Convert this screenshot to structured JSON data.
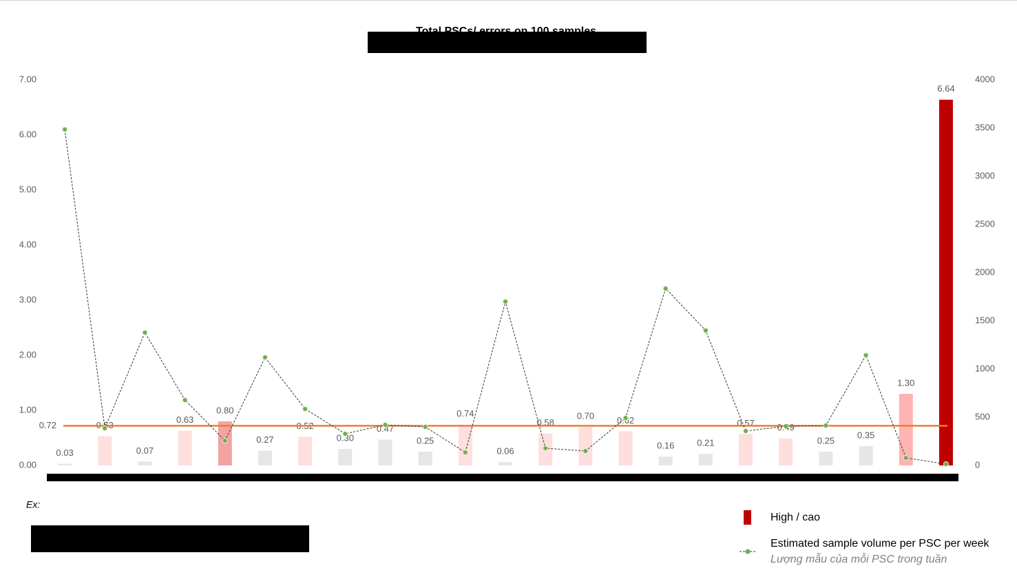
{
  "chart_data": {
    "type": "bar",
    "title": "Total PSCs/ errors on 100 samples",
    "note": "Ex:",
    "categories": [
      null,
      null,
      null,
      null,
      null,
      null,
      null,
      null,
      null,
      null,
      null,
      null,
      null,
      null,
      null,
      null,
      null,
      null,
      null,
      null,
      null,
      null,
      null
    ],
    "series": [
      {
        "name": "High / cao",
        "type": "bar",
        "color": "#c00000",
        "values": [
          0.03,
          0.53,
          0.07,
          0.63,
          0.8,
          0.27,
          0.52,
          0.3,
          0.47,
          0.25,
          0.74,
          0.06,
          0.58,
          0.7,
          0.62,
          0.16,
          0.21,
          0.57,
          0.49,
          0.25,
          0.35,
          1.3,
          6.64
        ],
        "value_labels": [
          "0.03",
          "0.53",
          "0.07",
          "0.63",
          "0.80",
          "0.27",
          "0.52",
          "0.30",
          "0.47",
          "0.25",
          "0.74",
          "0.06",
          "0.58",
          "0.70",
          "0.62",
          "0.16",
          "0.21",
          "0.57",
          "0.49",
          "0.25",
          "0.35",
          "1.30",
          "6.64"
        ],
        "colors": [
          "#e7e6e6",
          "#ffdede",
          "#e7e6e6",
          "#ffdede",
          "#f4a3a3",
          "#e7e6e6",
          "#ffdede",
          "#e7e6e6",
          "#e7e6e6",
          "#e7e6e6",
          "#ffdede",
          "#e7e6e6",
          "#ffdede",
          "#ffdede",
          "#ffdede",
          "#e7e6e6",
          "#e7e6e6",
          "#ffdede",
          "#ffdede",
          "#e7e6e6",
          "#e7e6e6",
          "#ffb3b3",
          "#c00000"
        ]
      },
      {
        "name": "Estimated sample volume per PSC per week",
        "name_vi": "Lượng mẫu của mỗi PSC trong tuần",
        "type": "line",
        "axis": "y2",
        "color": "#70ad47",
        "values": [
          3486,
          386,
          1379,
          679,
          257,
          1121,
          586,
          329,
          421,
          400,
          136,
          1700,
          179,
          150,
          493,
          1836,
          1400,
          357,
          407,
          414,
          1143,
          79,
          14
        ]
      }
    ],
    "reference_line": {
      "value": 0.72,
      "color": "#ed7d31"
    },
    "ylim": [
      0,
      7
    ],
    "yticks": [
      {
        "value": 0,
        "label": "0.00"
      },
      {
        "value": 1,
        "label": "1.00"
      },
      {
        "value": 2,
        "label": "2.00"
      },
      {
        "value": 3,
        "label": "3.00"
      },
      {
        "value": 4,
        "label": "4.00"
      },
      {
        "value": 5,
        "label": "5.00"
      },
      {
        "value": 6,
        "label": "6.00"
      },
      {
        "value": 7,
        "label": "7.00"
      }
    ],
    "y2lim": [
      0,
      4000
    ],
    "y2ticks": [
      0,
      500,
      1000,
      1500,
      2000,
      2500,
      3000,
      3500,
      4000
    ],
    "grid": false
  }
}
